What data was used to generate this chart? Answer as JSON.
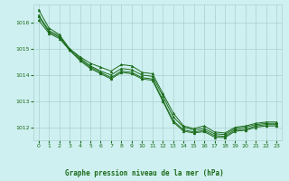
{
  "title": "Graphe pression niveau de la mer (hPa)",
  "bg_color": "#cff0f0",
  "plot_bg_color": "#cff0f0",
  "line_color": "#1a6b1a",
  "grid_color": "#aacfcf",
  "text_color": "#1a6b1a",
  "xlim": [
    -0.5,
    23.5
  ],
  "ylim": [
    1011.5,
    1016.7
  ],
  "yticks": [
    1012,
    1013,
    1014,
    1015,
    1016
  ],
  "xticks": [
    0,
    1,
    2,
    3,
    4,
    5,
    6,
    7,
    8,
    9,
    10,
    11,
    12,
    13,
    14,
    15,
    16,
    17,
    18,
    19,
    20,
    21,
    22,
    23
  ],
  "series": [
    [
      1016.5,
      1015.8,
      1015.55,
      1015.0,
      1014.7,
      1014.45,
      1014.3,
      1014.15,
      1014.4,
      1014.35,
      1014.1,
      1014.05,
      1013.3,
      1012.55,
      1012.05,
      1011.95,
      1012.05,
      1011.82,
      1011.78,
      1012.0,
      1012.05,
      1012.15,
      1012.2,
      1012.2
    ],
    [
      1016.3,
      1015.7,
      1015.5,
      1015.0,
      1014.65,
      1014.35,
      1014.15,
      1014.0,
      1014.25,
      1014.2,
      1014.0,
      1013.95,
      1013.2,
      1012.4,
      1012.0,
      1011.9,
      1011.95,
      1011.75,
      1011.72,
      1011.95,
      1012.0,
      1012.1,
      1012.15,
      1012.15
    ],
    [
      1016.25,
      1015.65,
      1015.45,
      1014.95,
      1014.6,
      1014.3,
      1014.1,
      1013.9,
      1014.15,
      1014.1,
      1013.9,
      1013.85,
      1013.05,
      1012.25,
      1011.9,
      1011.82,
      1011.88,
      1011.68,
      1011.65,
      1011.9,
      1011.92,
      1012.05,
      1012.1,
      1012.1
    ],
    [
      1016.1,
      1015.6,
      1015.4,
      1014.95,
      1014.55,
      1014.25,
      1014.05,
      1013.85,
      1014.1,
      1014.05,
      1013.85,
      1013.8,
      1013.0,
      1012.2,
      1011.85,
      1011.78,
      1011.83,
      1011.62,
      1011.6,
      1011.85,
      1011.88,
      1012.0,
      1012.05,
      1012.05
    ]
  ]
}
